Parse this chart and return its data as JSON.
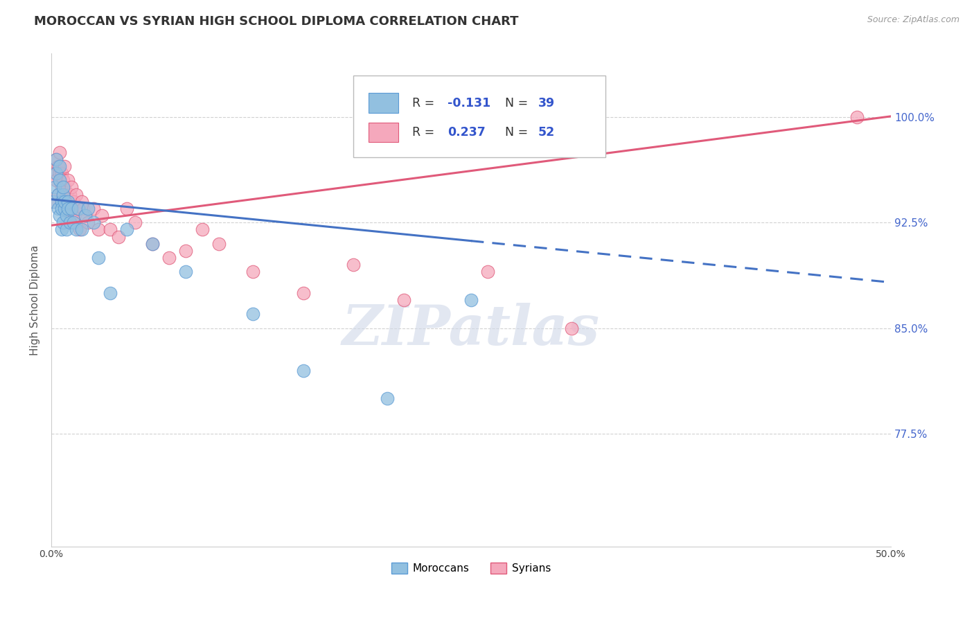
{
  "title": "MOROCCAN VS SYRIAN HIGH SCHOOL DIPLOMA CORRELATION CHART",
  "source": "Source: ZipAtlas.com",
  "ylabel": "High School Diploma",
  "xlim": [
    0.0,
    0.5
  ],
  "ylim": [
    0.695,
    1.045
  ],
  "ytick_vals": [
    0.775,
    0.85,
    0.925,
    1.0
  ],
  "ytick_labels": [
    "77.5%",
    "85.0%",
    "92.5%",
    "100.0%"
  ],
  "moroccan_color": "#92c0e0",
  "syrian_color": "#f5a8bc",
  "moroccan_edge_color": "#5b9bd5",
  "syrian_edge_color": "#e05a7a",
  "moroccan_line_color": "#4472c4",
  "syrian_line_color": "#e05a7a",
  "r_moroccan": -0.131,
  "n_moroccan": 39,
  "r_syrian": 0.237,
  "n_syrian": 52,
  "moroccan_intercept": 0.9415,
  "moroccan_slope": -0.118,
  "syrian_intercept": 0.923,
  "syrian_slope": 0.155,
  "moroccan_dots_x": [
    0.001,
    0.002,
    0.003,
    0.003,
    0.004,
    0.004,
    0.005,
    0.005,
    0.005,
    0.006,
    0.006,
    0.006,
    0.007,
    0.007,
    0.007,
    0.008,
    0.008,
    0.009,
    0.009,
    0.01,
    0.01,
    0.011,
    0.012,
    0.013,
    0.015,
    0.016,
    0.018,
    0.02,
    0.022,
    0.025,
    0.028,
    0.035,
    0.045,
    0.06,
    0.08,
    0.12,
    0.15,
    0.2,
    0.25
  ],
  "moroccan_dots_y": [
    0.94,
    0.95,
    0.96,
    0.97,
    0.945,
    0.935,
    0.955,
    0.965,
    0.93,
    0.92,
    0.94,
    0.935,
    0.945,
    0.925,
    0.95,
    0.935,
    0.94,
    0.93,
    0.92,
    0.94,
    0.935,
    0.925,
    0.935,
    0.925,
    0.92,
    0.935,
    0.92,
    0.93,
    0.935,
    0.925,
    0.9,
    0.875,
    0.92,
    0.91,
    0.89,
    0.86,
    0.82,
    0.8,
    0.87
  ],
  "syrian_dots_x": [
    0.001,
    0.002,
    0.003,
    0.003,
    0.004,
    0.004,
    0.005,
    0.005,
    0.006,
    0.006,
    0.006,
    0.007,
    0.007,
    0.008,
    0.008,
    0.008,
    0.009,
    0.009,
    0.01,
    0.01,
    0.011,
    0.011,
    0.012,
    0.012,
    0.013,
    0.014,
    0.015,
    0.016,
    0.017,
    0.018,
    0.019,
    0.02,
    0.022,
    0.025,
    0.028,
    0.03,
    0.035,
    0.04,
    0.045,
    0.05,
    0.06,
    0.07,
    0.08,
    0.09,
    0.1,
    0.12,
    0.15,
    0.18,
    0.21,
    0.26,
    0.31,
    0.48
  ],
  "syrian_dots_y": [
    0.94,
    0.96,
    0.955,
    0.97,
    0.965,
    0.945,
    0.96,
    0.975,
    0.95,
    0.94,
    0.96,
    0.945,
    0.955,
    0.965,
    0.95,
    0.94,
    0.935,
    0.945,
    0.955,
    0.94,
    0.93,
    0.945,
    0.93,
    0.95,
    0.94,
    0.93,
    0.945,
    0.935,
    0.92,
    0.94,
    0.935,
    0.93,
    0.925,
    0.935,
    0.92,
    0.93,
    0.92,
    0.915,
    0.935,
    0.925,
    0.91,
    0.9,
    0.905,
    0.92,
    0.91,
    0.89,
    0.875,
    0.895,
    0.87,
    0.89,
    0.85,
    1.0
  ],
  "watermark": "ZIPatlas",
  "background_color": "#ffffff",
  "grid_color": "#cccccc",
  "title_fontsize": 13,
  "axis_label_fontsize": 11,
  "tick_fontsize": 10,
  "source_fontsize": 9
}
